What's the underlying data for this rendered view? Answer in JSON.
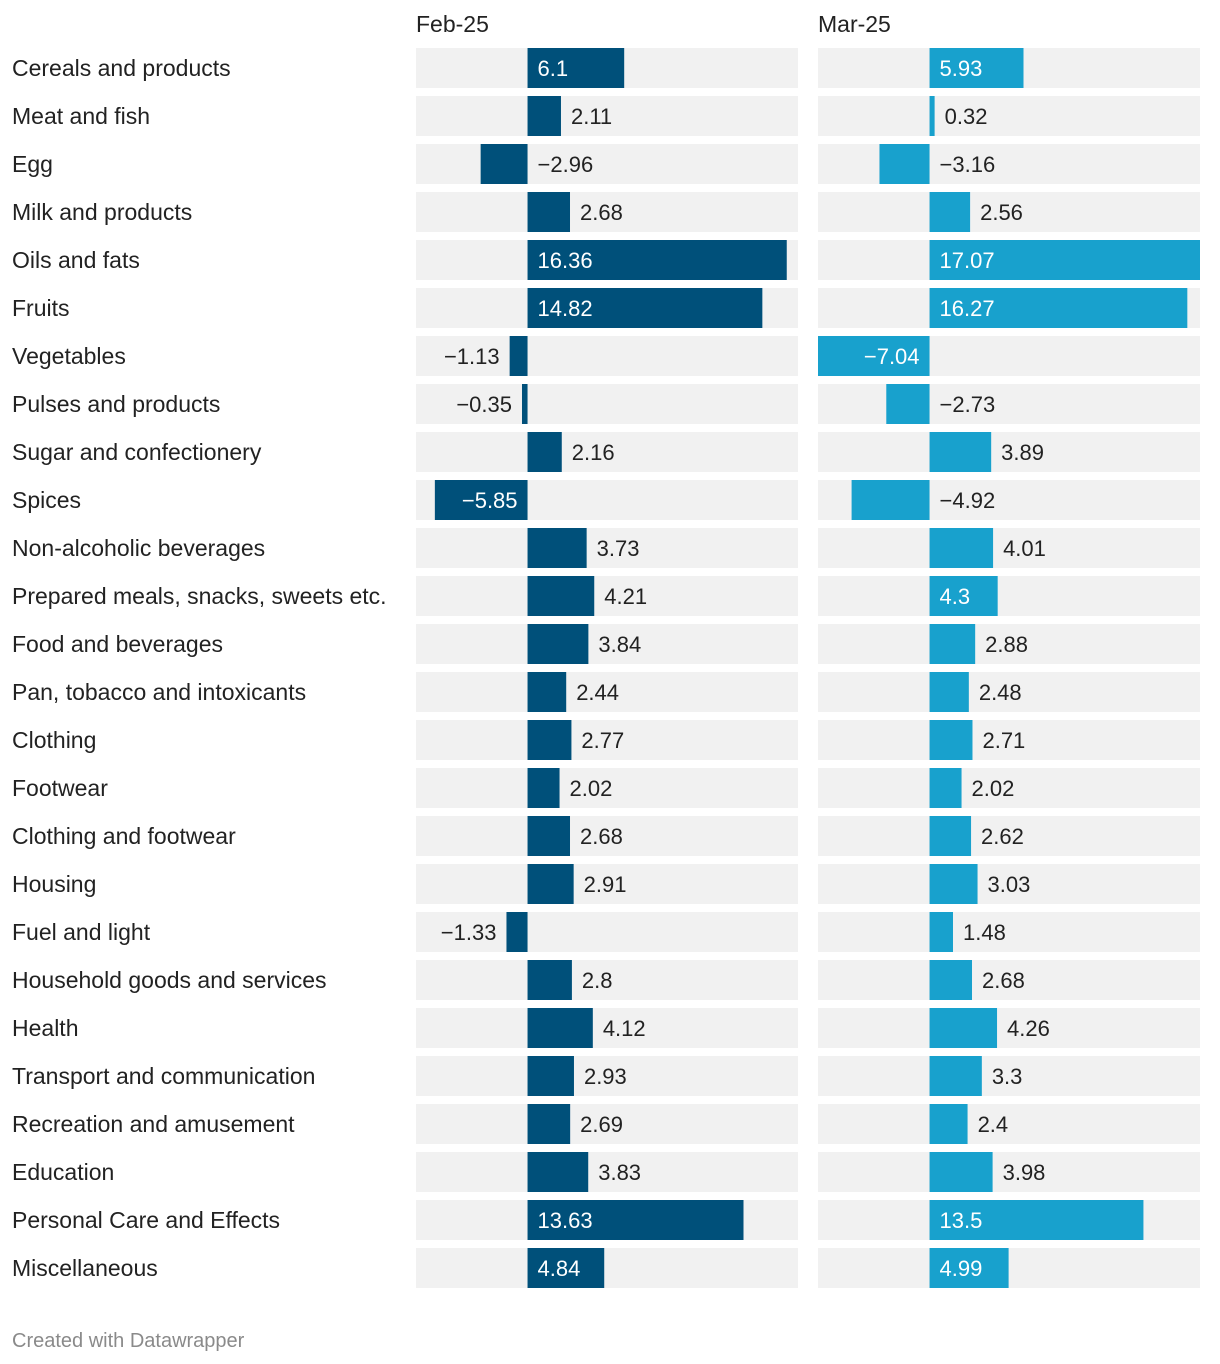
{
  "chart_data": {
    "type": "bar",
    "orientation": "horizontal",
    "categories": [
      "Cereals and products",
      "Meat and fish",
      "Egg",
      "Milk and products",
      "Oils and fats",
      "Fruits",
      "Vegetables",
      "Pulses and products",
      "Sugar and confectionery",
      "Spices",
      "Non-alcoholic beverages",
      "Prepared meals, snacks, sweets etc.",
      "Food and beverages",
      "Pan, tobacco and intoxicants",
      "Clothing",
      "Footwear",
      "Clothing and footwear",
      "Housing",
      "Fuel and light",
      "Household goods and services",
      "Health",
      "Transport and communication",
      "Recreation and amusement",
      "Education",
      "Personal Care and Effects",
      "Miscellaneous"
    ],
    "series": [
      {
        "name": "Feb-25",
        "color": "#00507a",
        "values": [
          6.1,
          2.11,
          -2.96,
          2.68,
          16.36,
          14.82,
          -1.13,
          -0.35,
          2.16,
          -5.85,
          3.73,
          4.21,
          3.84,
          2.44,
          2.77,
          2.02,
          2.68,
          2.91,
          -1.33,
          2.8,
          4.12,
          2.93,
          2.69,
          3.83,
          13.63,
          4.84
        ],
        "labels": [
          "6.1",
          "2.11",
          "−2.96",
          "2.68",
          "16.36",
          "14.82",
          "−1.13",
          "−0.35",
          "2.16",
          "−5.85",
          "3.73",
          "4.21",
          "3.84",
          "2.44",
          "2.77",
          "2.02",
          "2.68",
          "2.91",
          "−1.33",
          "2.8",
          "4.12",
          "2.93",
          "2.69",
          "3.83",
          "13.63",
          "4.84"
        ]
      },
      {
        "name": "Mar-25",
        "color": "#18a1cd",
        "values": [
          5.93,
          0.32,
          -3.16,
          2.56,
          17.07,
          16.27,
          -7.04,
          -2.73,
          3.89,
          -4.92,
          4.01,
          4.3,
          2.88,
          2.48,
          2.71,
          2.02,
          2.62,
          3.03,
          1.48,
          2.68,
          4.26,
          3.3,
          2.4,
          3.98,
          13.5,
          4.99
        ],
        "labels": [
          "5.93",
          "0.32",
          "−3.16",
          "2.56",
          "17.07",
          "16.27",
          "−7.04",
          "−2.73",
          "3.89",
          "−4.92",
          "4.01",
          "4.3",
          "2.88",
          "2.48",
          "2.71",
          "2.02",
          "2.62",
          "3.03",
          "1.48",
          "2.68",
          "4.26",
          "3.3",
          "2.4",
          "3.98",
          "13.5",
          "4.99"
        ]
      }
    ],
    "xlim": [
      -7.04,
      17.07
    ],
    "background_color": "#f1f1f1",
    "title": "",
    "xlabel": "",
    "ylabel": ""
  },
  "footer": {
    "credit": "Created with Datawrapper"
  }
}
